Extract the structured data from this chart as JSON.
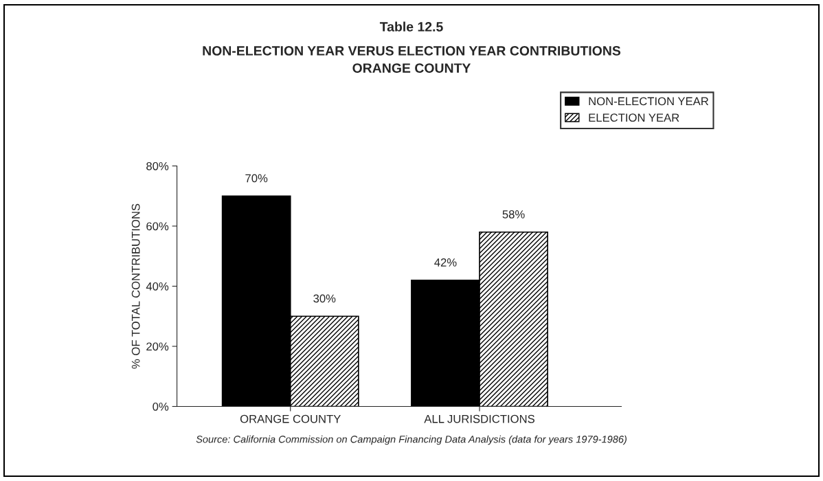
{
  "chart_data": {
    "type": "bar",
    "title": "Table 12.5",
    "subtitle": "NON-ELECTION YEAR VERUS ELECTION YEAR CONTRIBUTIONS\nORANGE COUNTY",
    "ylabel": "% OF TOTAL CONTRIBUTIONS",
    "categories": [
      "ORANGE COUNTY",
      "ALL JURISDICTIONS"
    ],
    "series": [
      {
        "name": "NON-ELECTION YEAR",
        "color": "#000000",
        "values": [
          70,
          42
        ],
        "value_labels": [
          "70%",
          "42%"
        ]
      },
      {
        "name": "ELECTION YEAR",
        "color": "#000000",
        "values": [
          30,
          58
        ],
        "value_labels": [
          "30%",
          "58%"
        ]
      }
    ],
    "ylim": [
      0,
      80
    ],
    "yticks": [
      {
        "value": 0,
        "label": "0%"
      },
      {
        "value": 20,
        "label": "20%"
      },
      {
        "value": 40,
        "label": "40%"
      },
      {
        "value": 60,
        "label": "60%"
      },
      {
        "value": 80,
        "label": "80%"
      }
    ],
    "legend": "top right",
    "grid": false,
    "annotations": [
      "Source: California Commission on Campaign Financing Data Analysis (data for years 1979-1986)"
    ]
  }
}
